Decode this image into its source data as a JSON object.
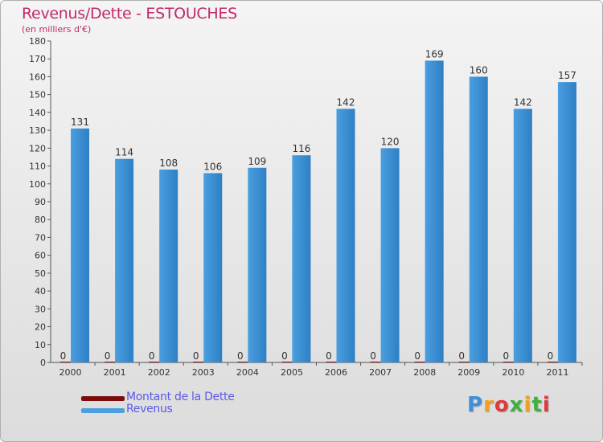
{
  "title": "Revenus/Dette - ESTOUCHES",
  "subtitle": "(en milliers d'€)",
  "logo_text": "Proxiti",
  "colors": {
    "dette": "#7a0c0c",
    "revenus": "#4a9fe0",
    "revenus_dark": "#2e7fc4",
    "axis": "#555555",
    "grid": "#cccccc",
    "label": "#333333"
  },
  "legend": [
    {
      "label": "Montant de la Dette",
      "color": "#7a0c0c"
    },
    {
      "label": "Revenus",
      "color": "#4a9fe0"
    }
  ],
  "chart_data": {
    "type": "bar",
    "title": "Revenus/Dette - ESTOUCHES",
    "ylabel": "(en milliers d'€)",
    "xlabel": "",
    "ylim": [
      0,
      180
    ],
    "ytick_step": 10,
    "grid": false,
    "legend_position": "bottom-left",
    "categories": [
      "2000",
      "2001",
      "2002",
      "2003",
      "2004",
      "2005",
      "2006",
      "2007",
      "2008",
      "2009",
      "2010",
      "2011"
    ],
    "series": [
      {
        "name": "Montant de la Dette",
        "values": [
          0,
          0,
          0,
          0,
          0,
          0,
          0,
          0,
          0,
          0,
          0,
          0
        ]
      },
      {
        "name": "Revenus",
        "values": [
          131,
          114,
          108,
          106,
          109,
          116,
          142,
          120,
          169,
          160,
          142,
          157
        ]
      }
    ]
  }
}
